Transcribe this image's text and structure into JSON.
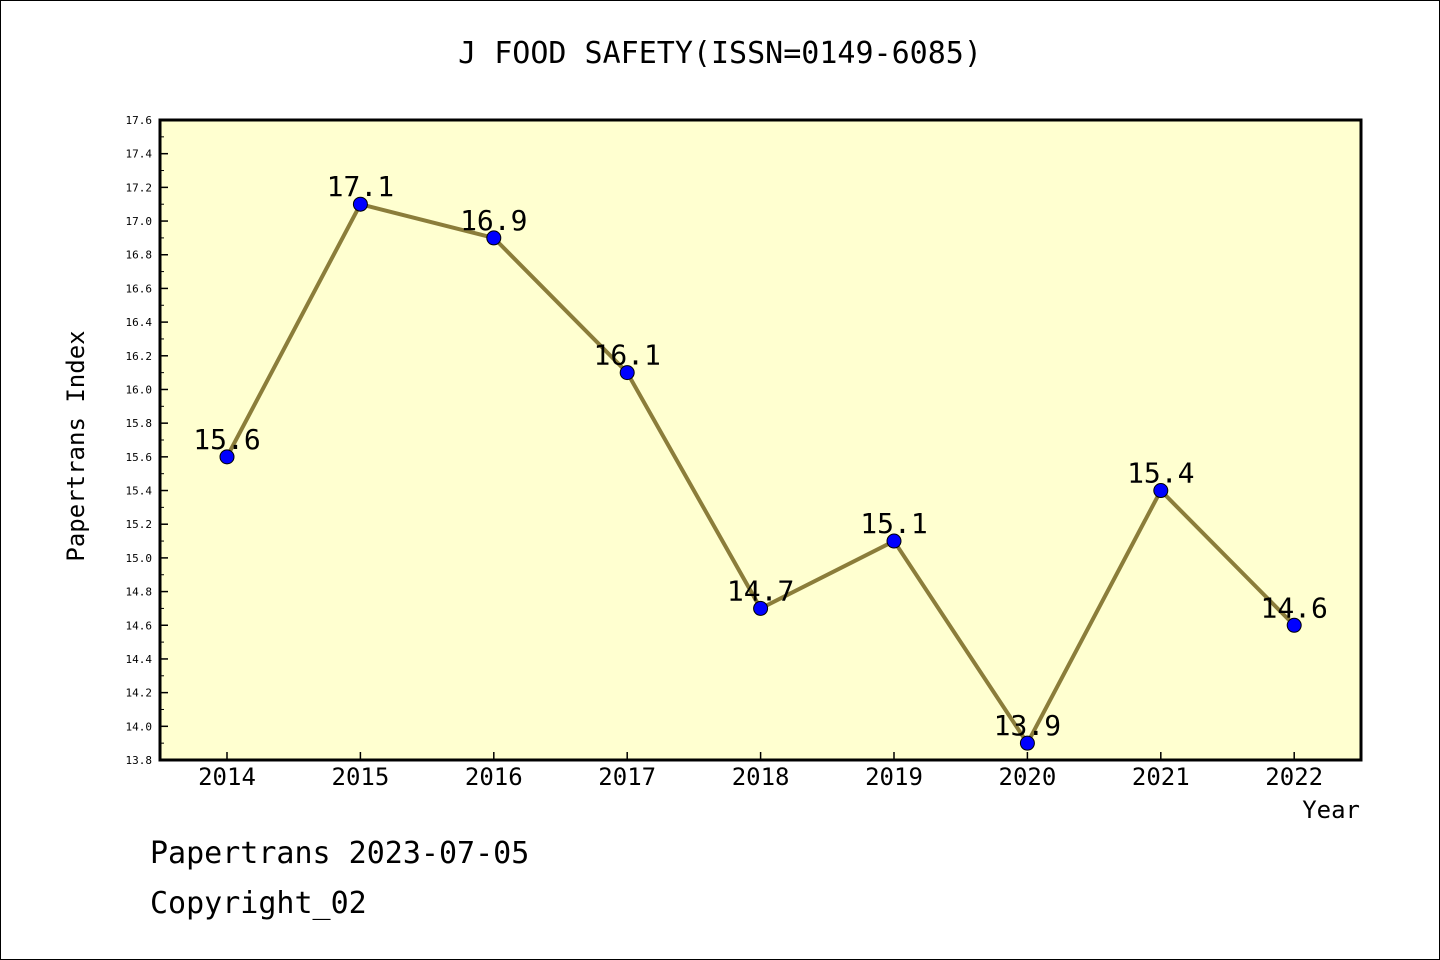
{
  "chart_data": {
    "type": "line",
    "title": "J FOOD SAFETY(ISSN=0149-6085)",
    "xlabel": "Year",
    "ylabel": "Papertrans Index",
    "categories": [
      "2014",
      "2015",
      "2016",
      "2017",
      "2018",
      "2019",
      "2020",
      "2021",
      "2022"
    ],
    "values": [
      15.6,
      17.1,
      16.9,
      16.1,
      14.7,
      15.1,
      13.9,
      15.4,
      14.6
    ],
    "data_labels": [
      "15.6",
      "17.1",
      "16.9",
      "16.1",
      "14.7",
      "15.1",
      "13.9",
      "15.4",
      "14.6"
    ],
    "ylim": [
      13.8,
      17.6
    ],
    "yticks": [
      "13.8",
      "14.0",
      "14.2",
      "14.4",
      "14.6",
      "14.8",
      "15.0",
      "15.2",
      "15.4",
      "15.6",
      "15.8",
      "16.0",
      "16.2",
      "16.4",
      "16.6",
      "16.8",
      "17.0",
      "17.2",
      "17.4",
      "17.6"
    ],
    "grid": false,
    "colors": {
      "plot_background": "#ffffd0",
      "line": "#8b7d3a",
      "marker": "#0000ff"
    }
  },
  "footer": {
    "line1": "Papertrans 2023-07-05",
    "line2": "Copyright_02"
  }
}
